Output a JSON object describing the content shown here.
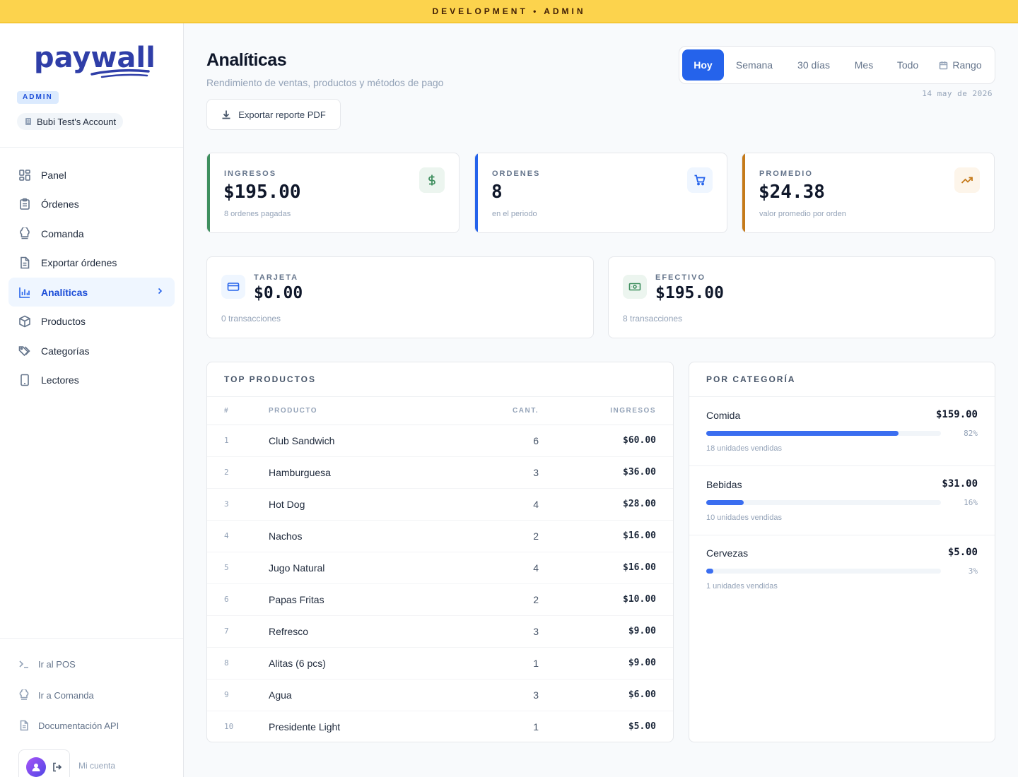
{
  "env_banner": "DEVELOPMENT • ADMIN",
  "sidebar": {
    "logo_text": "paywall",
    "role_badge": "ADMIN",
    "account": "Bubi Test's Account",
    "nav": [
      {
        "label": "Panel",
        "icon": "grid-icon"
      },
      {
        "label": "Órdenes",
        "icon": "clipboard-icon"
      },
      {
        "label": "Comanda",
        "icon": "chef-hat-icon"
      },
      {
        "label": "Exportar órdenes",
        "icon": "file-icon"
      },
      {
        "label": "Analíticas",
        "icon": "bar-chart-icon",
        "active": true
      },
      {
        "label": "Productos",
        "icon": "box-icon"
      },
      {
        "label": "Categorías",
        "icon": "tags-icon"
      },
      {
        "label": "Lectores",
        "icon": "tablet-icon"
      }
    ],
    "footer_links": [
      {
        "label": "Ir al POS",
        "icon": "terminal-icon"
      },
      {
        "label": "Ir a Comanda",
        "icon": "chef-hat-icon"
      },
      {
        "label": "Documentación API",
        "icon": "file-icon"
      }
    ],
    "my_account": "Mi cuenta"
  },
  "header": {
    "title": "Analíticas",
    "subtitle": "Rendimiento de ventas, productos y métodos de pago",
    "export_button": "Exportar reporte PDF",
    "date": "14 may de 2026"
  },
  "range_tabs": [
    {
      "label": "Hoy",
      "active": true
    },
    {
      "label": "Semana"
    },
    {
      "label": "30 días"
    },
    {
      "label": "Mes"
    },
    {
      "label": "Todo"
    },
    {
      "label": "Rango",
      "icon": "calendar-icon"
    }
  ],
  "kpis": [
    {
      "label": "INGRESOS",
      "value": "$195.00",
      "note": "8 ordenes pagadas",
      "accent": "#3f8f5f",
      "icon": "dollar-icon"
    },
    {
      "label": "ORDENES",
      "value": "8",
      "note": "en el periodo",
      "accent": "#2563eb",
      "icon": "cart-icon"
    },
    {
      "label": "PROMEDIO",
      "value": "$24.38",
      "note": "valor promedio por orden",
      "accent": "#c57a1a",
      "icon": "trending-up-icon"
    }
  ],
  "payments": [
    {
      "label": "TARJETA",
      "value": "$0.00",
      "note": "0 transacciones",
      "icon": "credit-card-icon"
    },
    {
      "label": "EFECTIVO",
      "value": "$195.00",
      "note": "8 transacciones",
      "icon": "banknote-icon"
    }
  ],
  "top_products": {
    "title": "TOP PRODUCTOS",
    "columns": [
      "#",
      "PRODUCTO",
      "CANT.",
      "INGRESOS"
    ],
    "rows": [
      {
        "n": "1",
        "name": "Club Sandwich",
        "qty": "6",
        "rev": "$60.00"
      },
      {
        "n": "2",
        "name": "Hamburguesa",
        "qty": "3",
        "rev": "$36.00"
      },
      {
        "n": "3",
        "name": "Hot Dog",
        "qty": "4",
        "rev": "$28.00"
      },
      {
        "n": "4",
        "name": "Nachos",
        "qty": "2",
        "rev": "$16.00"
      },
      {
        "n": "5",
        "name": "Jugo Natural",
        "qty": "4",
        "rev": "$16.00"
      },
      {
        "n": "6",
        "name": "Papas Fritas",
        "qty": "2",
        "rev": "$10.00"
      },
      {
        "n": "7",
        "name": "Refresco",
        "qty": "3",
        "rev": "$9.00"
      },
      {
        "n": "8",
        "name": "Alitas (6 pcs)",
        "qty": "1",
        "rev": "$9.00"
      },
      {
        "n": "9",
        "name": "Agua",
        "qty": "3",
        "rev": "$6.00"
      },
      {
        "n": "10",
        "name": "Presidente Light",
        "qty": "1",
        "rev": "$5.00"
      }
    ]
  },
  "categories": {
    "title": "POR CATEGORÍA",
    "items": [
      {
        "name": "Comida",
        "amount": "$159.00",
        "pct_label": "82%",
        "pct": 82,
        "units": "18 unidades vendidas"
      },
      {
        "name": "Bebidas",
        "amount": "$31.00",
        "pct_label": "16%",
        "pct": 16,
        "units": "10 unidades vendidas"
      },
      {
        "name": "Cervezas",
        "amount": "$5.00",
        "pct_label": "3%",
        "pct": 3,
        "units": "1 unidades vendidas"
      }
    ]
  }
}
